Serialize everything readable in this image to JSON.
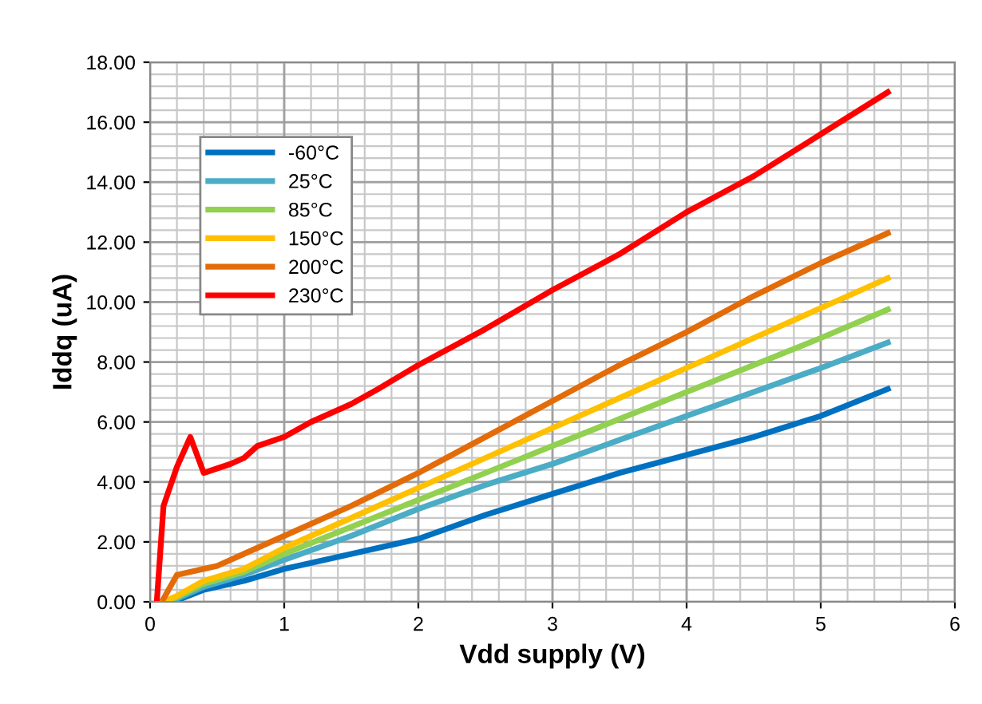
{
  "chart_data": {
    "type": "line",
    "xlabel": "Vdd supply (V)",
    "ylabel": "Iddq (uA)",
    "xlim": [
      0,
      6
    ],
    "xticks": [
      0,
      1,
      2,
      3,
      4,
      5,
      6
    ],
    "ylim": [
      0,
      18
    ],
    "yticks": [
      {
        "value": 0,
        "label": "0.00"
      },
      {
        "value": 2,
        "label": "2.00"
      },
      {
        "value": 4,
        "label": "4.00"
      },
      {
        "value": 6,
        "label": "6.00"
      },
      {
        "value": 8,
        "label": "8.00"
      },
      {
        "value": 10,
        "label": "10.00"
      },
      {
        "value": 12,
        "label": "12.00"
      },
      {
        "value": 14,
        "label": "14.00"
      },
      {
        "value": 16,
        "label": "16.00"
      },
      {
        "value": 18,
        "label": "18.00"
      }
    ],
    "grid": true,
    "legend": "top left",
    "marker": "none",
    "line_style": "solid",
    "series": [
      {
        "name": "-60°C",
        "color": "#0070c0",
        "x": [
          0.1,
          0.2,
          0.4,
          0.7,
          1.0,
          1.5,
          2.0,
          2.5,
          3.0,
          3.5,
          4.0,
          4.5,
          5.0,
          5.5
        ],
        "values": [
          0,
          0.05,
          0.4,
          0.7,
          1.1,
          1.6,
          2.1,
          2.9,
          3.6,
          4.3,
          4.9,
          5.5,
          6.2,
          7.1
        ]
      },
      {
        "name": "25°C",
        "color": "#4bacc6",
        "x": [
          0.1,
          0.2,
          0.4,
          0.7,
          1.0,
          1.5,
          2.0,
          2.5,
          3.0,
          3.5,
          4.0,
          4.5,
          5.0,
          5.5
        ],
        "values": [
          0,
          0.1,
          0.5,
          0.9,
          1.4,
          2.2,
          3.1,
          3.9,
          4.6,
          5.4,
          6.2,
          7.0,
          7.8,
          8.65
        ]
      },
      {
        "name": "85°C",
        "color": "#92d050",
        "x": [
          0.1,
          0.2,
          0.4,
          0.7,
          1.0,
          1.5,
          2.0,
          2.5,
          3.0,
          3.5,
          4.0,
          4.5,
          5.0,
          5.5
        ],
        "values": [
          0,
          0.15,
          0.6,
          1.0,
          1.6,
          2.5,
          3.4,
          4.3,
          5.2,
          6.1,
          7.0,
          7.9,
          8.8,
          9.75
        ]
      },
      {
        "name": "150°C",
        "color": "#ffc000",
        "x": [
          0.1,
          0.2,
          0.4,
          0.7,
          1.0,
          1.5,
          2.0,
          2.5,
          3.0,
          3.5,
          4.0,
          4.5,
          5.0,
          5.5
        ],
        "values": [
          0,
          0.2,
          0.7,
          1.1,
          1.8,
          2.8,
          3.8,
          4.8,
          5.8,
          6.8,
          7.8,
          8.8,
          9.8,
          10.8
        ]
      },
      {
        "name": "200°C",
        "color": "#e36c09",
        "x": [
          0.1,
          0.2,
          0.3,
          0.5,
          0.7,
          1.0,
          1.5,
          2.0,
          2.5,
          3.0,
          3.5,
          4.0,
          4.5,
          5.0,
          5.5
        ],
        "values": [
          0.1,
          0.9,
          1.0,
          1.2,
          1.6,
          2.2,
          3.2,
          4.3,
          5.5,
          6.7,
          7.9,
          9.0,
          10.2,
          11.3,
          12.3
        ]
      },
      {
        "name": "230°C",
        "color": "#ff0000",
        "x": [
          0.05,
          0.1,
          0.2,
          0.3,
          0.4,
          0.6,
          0.7,
          0.8,
          1.0,
          1.2,
          1.5,
          1.7,
          2.0,
          2.5,
          3.0,
          3.5,
          4.0,
          4.5,
          5.0,
          5.5
        ],
        "values": [
          0,
          3.2,
          4.5,
          5.5,
          4.3,
          4.6,
          4.8,
          5.2,
          5.5,
          6.0,
          6.6,
          7.1,
          7.9,
          9.1,
          10.4,
          11.6,
          13.0,
          14.2,
          15.6,
          17.0
        ]
      }
    ]
  }
}
